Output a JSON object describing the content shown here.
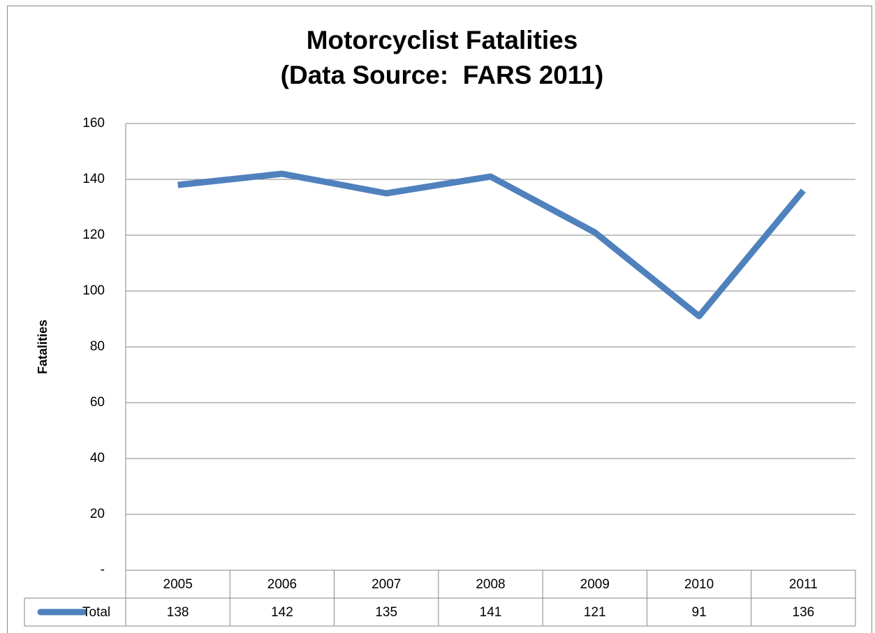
{
  "chart_data": {
    "type": "line",
    "title": [
      "Motorcyclist Fatalities",
      "(Data Source:  FARS 2011)"
    ],
    "ylabel": "Fatalities",
    "categories": [
      "2005",
      "2006",
      "2007",
      "2008",
      "2009",
      "2010",
      "2011"
    ],
    "series": [
      {
        "name": "Total",
        "color": "#4f81bd",
        "values": [
          138,
          142,
          135,
          141,
          121,
          91,
          136
        ]
      }
    ],
    "ylim": [
      0,
      160
    ],
    "yticks": [
      {
        "value": 0,
        "label": "-"
      },
      20,
      40,
      60,
      80,
      100,
      120,
      140,
      160
    ],
    "grid": true,
    "data_table": true
  }
}
